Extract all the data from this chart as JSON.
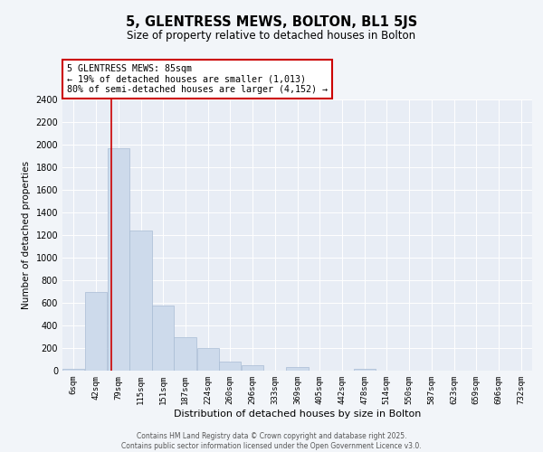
{
  "title": "5, GLENTRESS MEWS, BOLTON, BL1 5JS",
  "subtitle": "Size of property relative to detached houses in Bolton",
  "xlabel": "Distribution of detached houses by size in Bolton",
  "ylabel": "Number of detached properties",
  "bar_color": "#cddaeb",
  "bar_edge_color": "#a8bcd4",
  "fig_bg_color": "#f2f5f9",
  "ax_bg_color": "#e8edf5",
  "grid_color": "#ffffff",
  "annotation_box_color": "#cc0000",
  "annotation_line_color": "#cc0000",
  "property_line_x": 85,
  "annotation_text_line1": "5 GLENTRESS MEWS: 85sqm",
  "annotation_text_line2": "← 19% of detached houses are smaller (1,013)",
  "annotation_text_line3": "80% of semi-detached houses are larger (4,152) →",
  "tick_labels": [
    "6sqm",
    "42sqm",
    "79sqm",
    "115sqm",
    "151sqm",
    "187sqm",
    "224sqm",
    "260sqm",
    "296sqm",
    "333sqm",
    "369sqm",
    "405sqm",
    "442sqm",
    "478sqm",
    "514sqm",
    "550sqm",
    "587sqm",
    "623sqm",
    "659sqm",
    "696sqm",
    "732sqm"
  ],
  "bin_edges": [
    6,
    42,
    79,
    115,
    151,
    187,
    224,
    260,
    296,
    333,
    369,
    405,
    442,
    478,
    514,
    550,
    587,
    623,
    659,
    696,
    732
  ],
  "bar_heights": [
    15,
    700,
    1970,
    1240,
    580,
    300,
    200,
    80,
    45,
    0,
    35,
    0,
    0,
    15,
    0,
    0,
    0,
    0,
    0,
    0
  ],
  "ylim": [
    0,
    2400
  ],
  "yticks": [
    0,
    200,
    400,
    600,
    800,
    1000,
    1200,
    1400,
    1600,
    1800,
    2000,
    2200,
    2400
  ],
  "footer_line1": "Contains HM Land Registry data © Crown copyright and database right 2025.",
  "footer_line2": "Contains public sector information licensed under the Open Government Licence v3.0."
}
